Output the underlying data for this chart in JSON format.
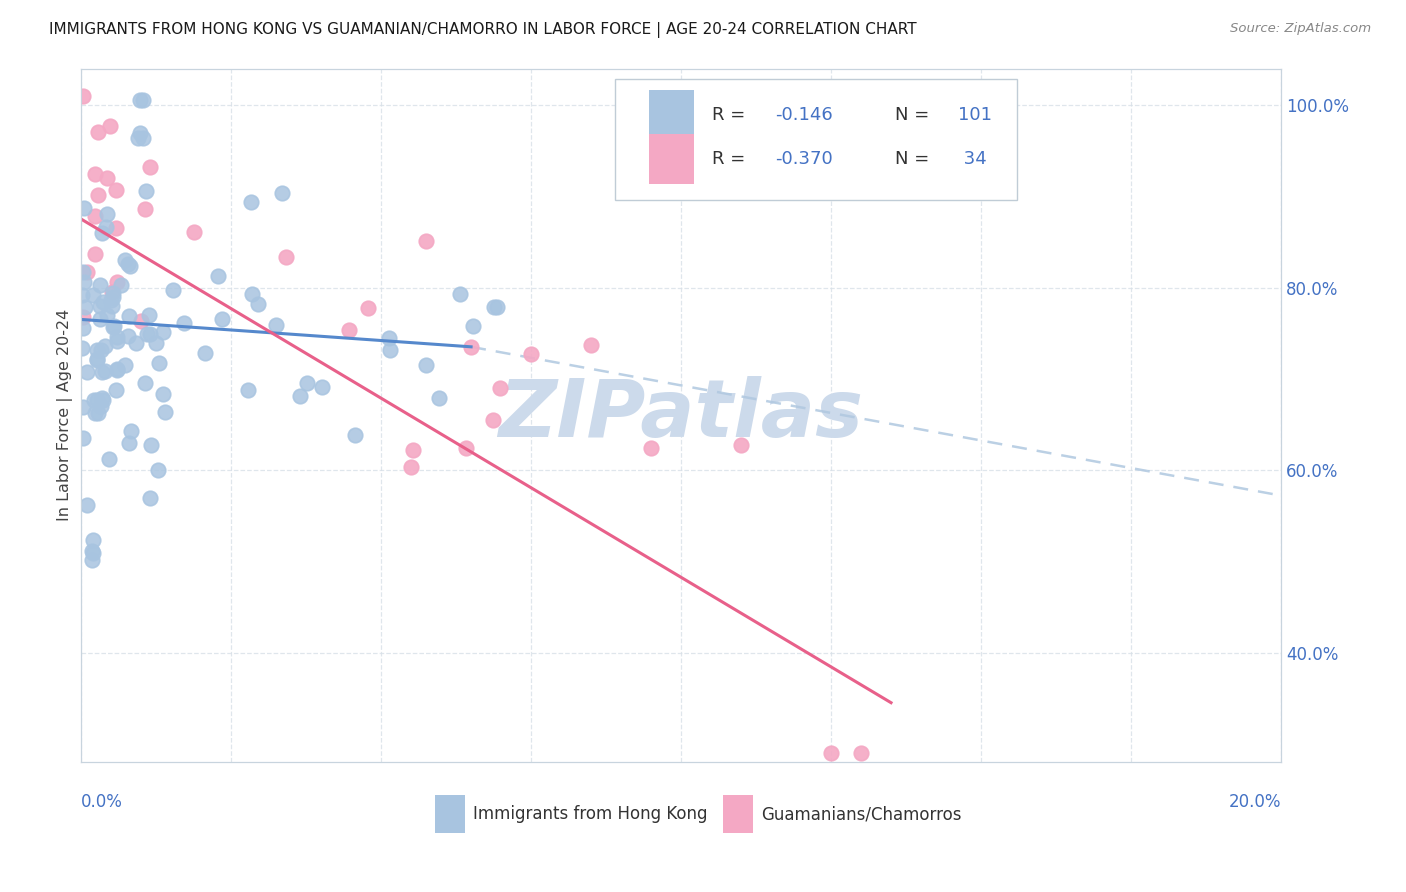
{
  "title": "IMMIGRANTS FROM HONG KONG VS GUAMANIAN/CHAMORRO IN LABOR FORCE | AGE 20-24 CORRELATION CHART",
  "source": "Source: ZipAtlas.com",
  "ylabel": "In Labor Force | Age 20-24",
  "xlim": [
    0.0,
    0.2
  ],
  "ylim": [
    0.28,
    1.04
  ],
  "right_yticks": [
    0.4,
    0.6,
    0.8,
    1.0
  ],
  "right_yticklabels": [
    "40.0%",
    "60.0%",
    "80.0%",
    "100.0%"
  ],
  "hk_color": "#a8c4e0",
  "gua_color": "#f4a8c4",
  "hk_line_color": "#5588cc",
  "gua_line_color": "#e8608a",
  "ext_line_color": "#b0c8e0",
  "watermark": "ZIPatlas",
  "watermark_color": "#ccdaeb",
  "legend_r_color": "#4472c4",
  "legend_n_color": "#4472c4",
  "legend_label_color": "#333333",
  "r_neg_color": "#4472c4",
  "hk_r": -0.146,
  "gua_r": -0.37,
  "hk_n": 101,
  "gua_n": 34,
  "hk_line_x0": 0.0,
  "hk_line_y0": 0.765,
  "hk_line_x1": 0.065,
  "hk_line_y1": 0.735,
  "gua_line_x0": 0.0,
  "gua_line_y0": 0.875,
  "gua_line_x1": 0.135,
  "gua_line_y1": 0.345,
  "ext_line_x0": 0.065,
  "ext_line_y0": 0.735,
  "ext_line_x1": 0.2,
  "ext_line_y1": 0.572
}
